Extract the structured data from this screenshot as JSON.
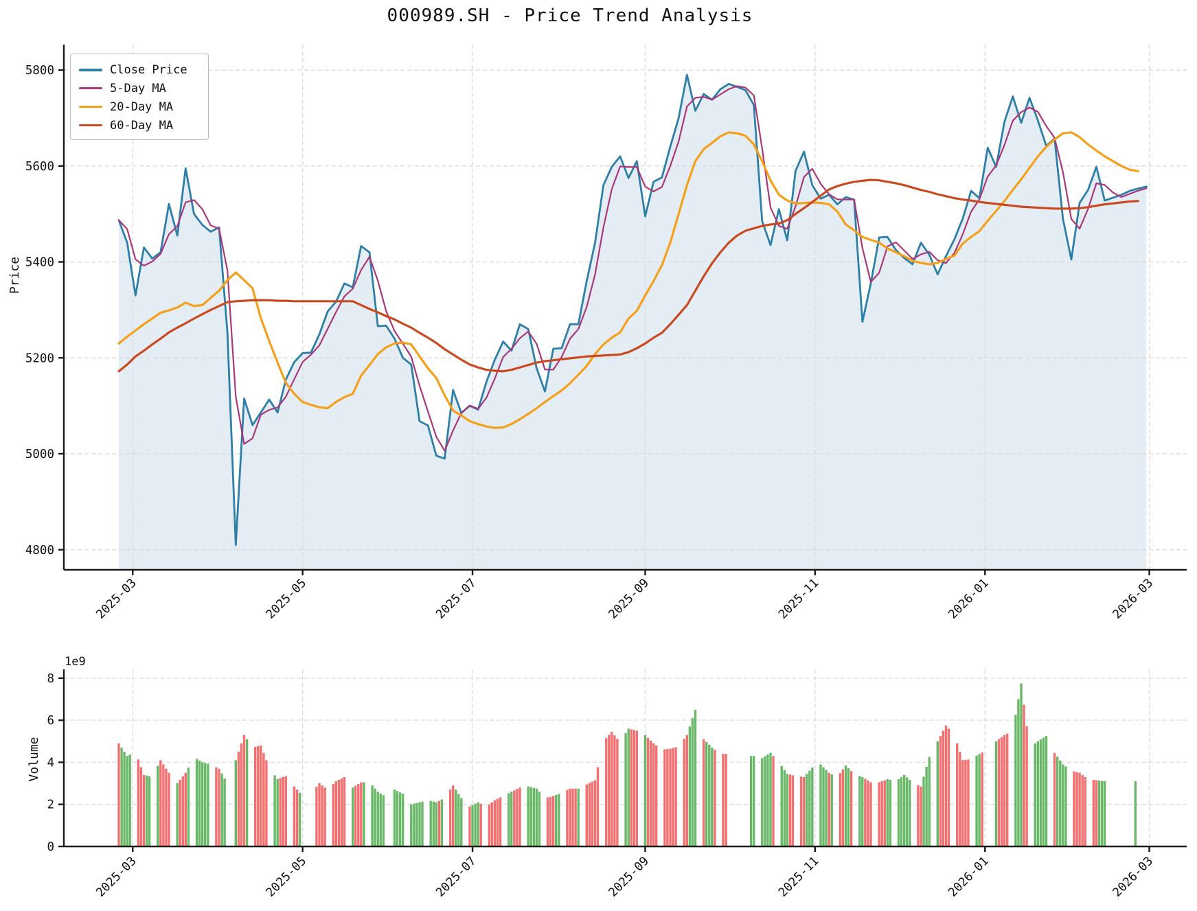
{
  "title": "000989.SH - Price Trend Analysis",
  "chart_data": [
    {
      "type": "line",
      "panel": "price",
      "title": "000989.SH - Price Trend Analysis",
      "ylabel": "Price",
      "x_start_date": "2025-02-24",
      "x_end_date": "2026-02-24",
      "sample_interval_calendar_days": 3,
      "ylim": [
        4779,
        5826
      ],
      "y_ticks": [
        4800,
        5000,
        5200,
        5400,
        5600,
        5800
      ],
      "x_ticks": [
        {
          "label": "2025-03",
          "day": 5
        },
        {
          "label": "2025-05",
          "day": 66
        },
        {
          "label": "2025-07",
          "day": 127
        },
        {
          "label": "2025-09",
          "day": 189
        },
        {
          "label": "2025-11",
          "day": 250
        },
        {
          "label": "2026-01",
          "day": 311
        },
        {
          "label": "2026-03",
          "day": 370
        }
      ],
      "legend": [
        {
          "label": "Close Price",
          "color": "#2e7fa8",
          "weight": 4
        },
        {
          "label": "5-Day MA",
          "color": "#a8387a",
          "weight": 3
        },
        {
          "label": "20-Day MA",
          "color": "#f5a01b",
          "weight": 3
        },
        {
          "label": "60-Day MA",
          "color": "#c94a20",
          "weight": 3
        }
      ],
      "series": {
        "close": [
          5487,
          5440,
          5330,
          5430,
          5407,
          5420,
          5521,
          5455,
          5595,
          5500,
          5477,
          5463,
          5472,
          5252,
          4810,
          5115,
          5060,
          5086,
          5113,
          5086,
          5155,
          5191,
          5210,
          5211,
          5249,
          5297,
          5317,
          5355,
          5347,
          5433,
          5420,
          5266,
          5267,
          5240,
          5200,
          5186,
          5068,
          5059,
          4996,
          4990,
          5133,
          5085,
          5100,
          5092,
          5150,
          5196,
          5234,
          5215,
          5270,
          5260,
          5179,
          5130,
          5219,
          5220,
          5270,
          5270,
          5360,
          5440,
          5560,
          5598,
          5620,
          5575,
          5610,
          5495,
          5567,
          5576,
          5640,
          5700,
          5790,
          5715,
          5750,
          5738,
          5760,
          5771,
          5765,
          5758,
          5727,
          5485,
          5435,
          5510,
          5445,
          5590,
          5630,
          5560,
          5532,
          5540,
          5520,
          5535,
          5530,
          5275,
          5355,
          5451,
          5452,
          5425,
          5408,
          5395,
          5440,
          5415,
          5374,
          5412,
          5447,
          5490,
          5548,
          5533,
          5638,
          5598,
          5692,
          5745,
          5690,
          5742,
          5695,
          5642,
          5657,
          5490,
          5405,
          5523,
          5550,
          5598,
          5528,
          5534,
          5540,
          5548,
          5553,
          5557
        ],
        "ma20": [
          5230,
          5244,
          5257,
          5270,
          5282,
          5294,
          5299,
          5305,
          5315,
          5308,
          5310,
          5325,
          5340,
          5362,
          5378,
          5362,
          5345,
          5283,
          5235,
          5190,
          5148,
          5125,
          5108,
          5102,
          5097,
          5095,
          5108,
          5118,
          5125,
          5163,
          5185,
          5208,
          5222,
          5230,
          5232,
          5228,
          5203,
          5178,
          5158,
          5122,
          5090,
          5080,
          5068,
          5062,
          5057,
          5054,
          5055,
          5062,
          5072,
          5083,
          5095,
          5108,
          5120,
          5132,
          5147,
          5165,
          5183,
          5208,
          5228,
          5242,
          5253,
          5282,
          5298,
          5330,
          5360,
          5393,
          5440,
          5500,
          5560,
          5610,
          5635,
          5648,
          5662,
          5670,
          5668,
          5663,
          5645,
          5610,
          5570,
          5540,
          5528,
          5522,
          5523,
          5524,
          5523,
          5520,
          5505,
          5478,
          5466,
          5452,
          5446,
          5440,
          5428,
          5420,
          5412,
          5402,
          5398,
          5395,
          5398,
          5406,
          5413,
          5438,
          5452,
          5464,
          5486,
          5506,
          5527,
          5550,
          5572,
          5596,
          5620,
          5640,
          5655,
          5668,
          5670,
          5660,
          5645,
          5632,
          5620,
          5610,
          5600,
          5592,
          5589
        ],
        "ma60": [
          5172,
          5186,
          5203,
          5215,
          5228,
          5240,
          5253,
          5263,
          5272,
          5282,
          5291,
          5300,
          5308,
          5316,
          5318,
          5319,
          5320,
          5320,
          5320,
          5319,
          5319,
          5318,
          5318,
          5318,
          5318,
          5318,
          5318,
          5318,
          5318,
          5310,
          5302,
          5295,
          5287,
          5280,
          5271,
          5263,
          5252,
          5242,
          5231,
          5218,
          5207,
          5196,
          5186,
          5180,
          5175,
          5173,
          5172,
          5175,
          5180,
          5185,
          5190,
          5193,
          5195,
          5197,
          5199,
          5201,
          5203,
          5204,
          5205,
          5206,
          5207,
          5212,
          5220,
          5230,
          5242,
          5252,
          5270,
          5290,
          5310,
          5340,
          5370,
          5397,
          5420,
          5440,
          5455,
          5465,
          5470,
          5475,
          5478,
          5480,
          5487,
          5500,
          5512,
          5525,
          5538,
          5551,
          5558,
          5563,
          5567,
          5569,
          5571,
          5570,
          5567,
          5564,
          5560,
          5555,
          5550,
          5546,
          5541,
          5537,
          5533,
          5530,
          5528,
          5525,
          5523,
          5521,
          5519,
          5517,
          5515,
          5514,
          5513,
          5512,
          5511,
          5511,
          5511,
          5512,
          5514,
          5517,
          5520,
          5522,
          5524,
          5526,
          5527
        ],
        "ma5_note": "5-Day MA rendered as short rolling mean of the close series"
      },
      "market_closed_day_ranges": [
        [
          39,
          41
        ],
        [
          66,
          70
        ],
        [
          96,
          98
        ],
        [
          219,
          226
        ],
        [
          311,
          312
        ],
        [
          357,
          364
        ]
      ]
    },
    {
      "type": "bar",
      "panel": "volume",
      "ylabel": "Volume",
      "scale_label": "1e9",
      "unit": 1000000000,
      "y_ticks": [
        0,
        2,
        4,
        6,
        8
      ],
      "values_1e9": [
        4.9,
        4.3,
        4.5,
        3.4,
        3.3,
        4.1,
        3.5,
        3.0,
        3.5,
        4.25,
        4.0,
        3.9,
        3.7,
        3.0,
        4.1,
        5.3,
        4.7,
        4.8,
        3.75,
        3.2,
        3.35,
        2.85,
        2.4,
        2.5,
        3.0,
        2.7,
        3.1,
        3.3,
        2.8,
        3.05,
        3.05,
        2.6,
        2.35,
        2.7,
        2.5,
        2.0,
        2.1,
        2.2,
        2.1,
        2.3,
        2.9,
        2.3,
        1.9,
        2.1,
        1.9,
        2.2,
        2.4,
        2.6,
        2.8,
        2.85,
        2.75,
        2.3,
        2.4,
        2.55,
        2.75,
        2.75,
        2.95,
        3.15,
        5.0,
        5.45,
        4.95,
        5.6,
        5.5,
        5.3,
        4.9,
        4.6,
        4.65,
        4.75,
        5.3,
        6.5,
        5.1,
        4.7,
        4.4,
        4.4,
        4.35,
        4.3,
        4.3,
        4.2,
        4.45,
        4.0,
        3.45,
        3.35,
        3.3,
        3.75,
        3.9,
        3.5,
        3.3,
        3.85,
        3.45,
        3.3,
        3.05,
        3.05,
        3.2,
        3.1,
        3.4,
        3.05,
        2.85,
        4.25,
        5.0,
        5.75,
        5.3,
        4.1,
        4.15,
        4.4,
        4.6,
        5.0,
        5.3,
        5.5,
        7.75,
        4.7,
        5.0,
        5.25,
        4.45,
        3.9,
        3.6,
        3.5,
        3.2,
        3.15,
        3.1,
        3.1,
        3.1,
        3.1,
        3.1
      ],
      "up_color": "#f47070",
      "down_color": "#68b868"
    }
  ],
  "colors": {
    "fill": "#e4edf4",
    "grid": "#dcdcdc",
    "axis": "#1a1a1a",
    "text": "#111111"
  }
}
